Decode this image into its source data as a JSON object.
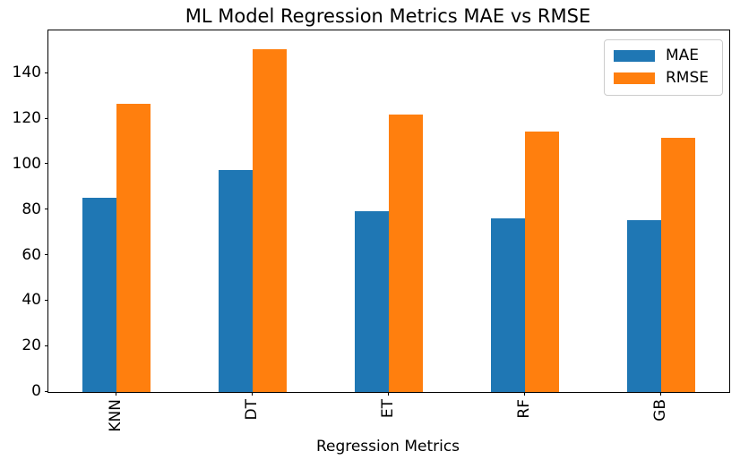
{
  "chart_data": {
    "type": "bar",
    "title": "ML Model Regression Metrics MAE vs RMSE",
    "xlabel": "Regression Metrics",
    "ylabel": "",
    "categories": [
      "KNN",
      "DT",
      "ET",
      "RF",
      "GB"
    ],
    "series": [
      {
        "name": "MAE",
        "color": "#1f77b4",
        "values": [
          85.3,
          97.8,
          79.5,
          76.2,
          75.5
        ]
      },
      {
        "name": "RMSE",
        "color": "#ff7f0e",
        "values": [
          126.7,
          150.9,
          122.0,
          114.5,
          111.8
        ]
      }
    ],
    "ylim": [
      0,
      159
    ],
    "yticks": [
      0,
      20,
      40,
      60,
      80,
      100,
      120,
      140
    ],
    "grid": false,
    "legend_position": "upper right",
    "bar_width_fraction": 0.25,
    "x_tick_rotation_deg": 90
  },
  "colors": {
    "background": "#ffffff",
    "axes_edge": "#000000",
    "legend_border": "#cccccc",
    "text": "#000000"
  }
}
